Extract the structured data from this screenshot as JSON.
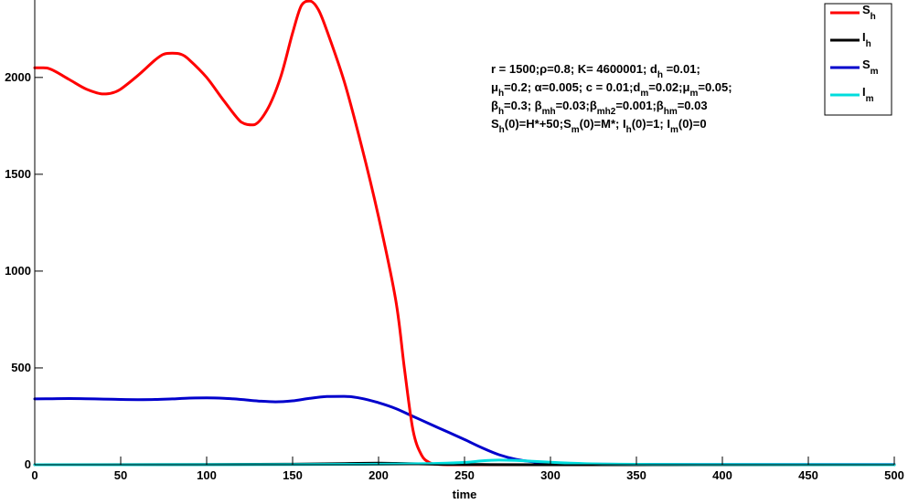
{
  "chart_data": {
    "type": "line",
    "xlabel": "time",
    "ylabel": "",
    "title": "",
    "xlim": [
      0,
      500
    ],
    "ylim": [
      0,
      2400
    ],
    "xticks": [
      0,
      50,
      100,
      150,
      200,
      250,
      300,
      350,
      400,
      450,
      500
    ],
    "yticks": [
      0,
      500,
      1000,
      1500,
      2000
    ],
    "grid": false,
    "legend_position": "top-right",
    "annotation_lines": [
      [
        {
          "t": "r = 1500;ρ=0.8; K= 4600001; d"
        },
        {
          "t": "h",
          "s": "sub"
        },
        {
          "t": " =0.01;"
        }
      ],
      [
        {
          "t": "μ"
        },
        {
          "t": "h",
          "s": "sub"
        },
        {
          "t": "=0.2; α=0.005; c = 0.01;d"
        },
        {
          "t": "m",
          "s": "sub"
        },
        {
          "t": "=0.02;μ"
        },
        {
          "t": "m",
          "s": "sub"
        },
        {
          "t": "=0.05;"
        }
      ],
      [
        {
          "t": "β"
        },
        {
          "t": "h",
          "s": "sub"
        },
        {
          "t": "=0.3; β"
        },
        {
          "t": "mh",
          "s": "sub"
        },
        {
          "t": "=0.03;β"
        },
        {
          "t": "mh2",
          "s": "sub"
        },
        {
          "t": "=0.001;β"
        },
        {
          "t": "hm",
          "s": "sub"
        },
        {
          "t": "=0.03"
        }
      ],
      [
        {
          "t": "S"
        },
        {
          "t": "h",
          "s": "sub"
        },
        {
          "t": "(0)=H*+50;S"
        },
        {
          "t": "m",
          "s": "sub"
        },
        {
          "t": "(0)=M*; I"
        },
        {
          "t": "h",
          "s": "sub"
        },
        {
          "t": "(0)=1; I"
        },
        {
          "t": "m",
          "s": "sub"
        },
        {
          "t": "(0)=0"
        }
      ]
    ],
    "series": [
      {
        "name": "S_h",
        "label_main": "S",
        "label_sub": "h",
        "color": "#ff0000",
        "x": [
          0,
          5,
          10,
          20,
          30,
          40,
          45,
          50,
          60,
          70,
          75,
          80,
          85,
          90,
          100,
          110,
          120,
          127,
          135,
          143,
          150,
          155,
          160,
          165,
          170,
          180,
          190,
          200,
          210,
          215,
          220,
          225,
          230,
          235,
          240,
          250,
          300,
          400,
          500
        ],
        "y": [
          2050,
          2050,
          2040,
          1990,
          1940,
          1915,
          1920,
          1940,
          2010,
          2090,
          2120,
          2125,
          2120,
          2090,
          2000,
          1880,
          1770,
          1755,
          1830,
          2000,
          2230,
          2370,
          2395,
          2350,
          2240,
          1980,
          1650,
          1280,
          850,
          500,
          180,
          50,
          10,
          2,
          0,
          0,
          0,
          0,
          0
        ]
      },
      {
        "name": "I_h",
        "label_main": "I",
        "label_sub": "h",
        "color": "#000000",
        "x": [
          0,
          100,
          150,
          180,
          200,
          210,
          220,
          240,
          260,
          300,
          400,
          500
        ],
        "y": [
          0,
          1,
          3,
          6,
          8,
          7,
          5,
          2,
          1,
          0,
          0,
          0
        ]
      },
      {
        "name": "S_m",
        "label_main": "S",
        "label_sub": "m",
        "color": "#0000cc",
        "x": [
          0,
          10,
          20,
          30,
          40,
          50,
          60,
          70,
          80,
          90,
          100,
          110,
          120,
          130,
          140,
          150,
          160,
          170,
          180,
          190,
          200,
          210,
          220,
          230,
          240,
          250,
          260,
          270,
          280,
          290,
          300,
          320,
          350,
          400,
          500
        ],
        "y": [
          340,
          341,
          342,
          341,
          339,
          337,
          336,
          337,
          340,
          344,
          345,
          343,
          337,
          329,
          325,
          330,
          343,
          352,
          353,
          343,
          320,
          290,
          250,
          210,
          170,
          130,
          88,
          52,
          28,
          15,
          8,
          4,
          2,
          1,
          1
        ]
      },
      {
        "name": "I_m",
        "label_main": "I",
        "label_sub": "m",
        "color": "#00dddd",
        "x": [
          0,
          150,
          200,
          230,
          250,
          260,
          270,
          280,
          290,
          300,
          310,
          330,
          360,
          400,
          500
        ],
        "y": [
          0,
          1,
          3,
          6,
          12,
          20,
          24,
          22,
          18,
          13,
          9,
          4,
          2,
          1,
          0
        ]
      }
    ]
  }
}
